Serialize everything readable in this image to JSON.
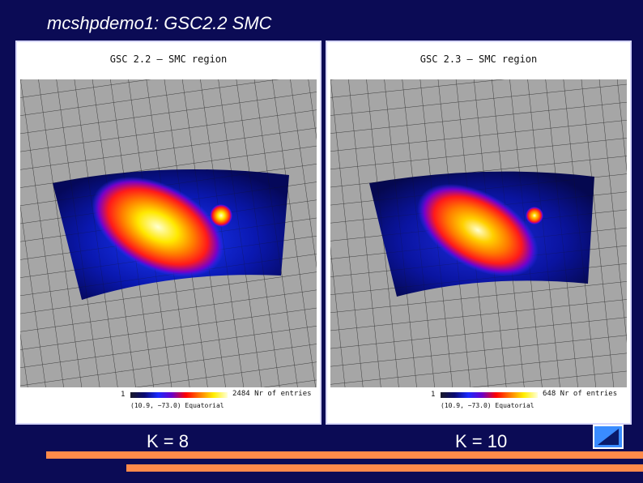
{
  "slide": {
    "title": "mcshpdemo1: GSC2.2 SMC"
  },
  "panels": [
    {
      "title": "GSC 2.2 — SMC region",
      "colorbar_min": "1",
      "colorbar_max": "2484 Nr of entries",
      "center_label": "(10.9, −73.0) Equatorial",
      "caption": "K = 8"
    },
    {
      "title": "GSC 2.3 — SMC region",
      "colorbar_min": "1",
      "colorbar_max": "648 Nr of entries",
      "center_label": "(10.9, −73.0) Equatorial",
      "caption": "K = 10"
    }
  ],
  "nav": {
    "icon": "triangle-back-icon"
  },
  "colors": {
    "background": "#0b0b55",
    "accent_bar": "#ff8a4a",
    "nav_button": "#3a8cff"
  }
}
